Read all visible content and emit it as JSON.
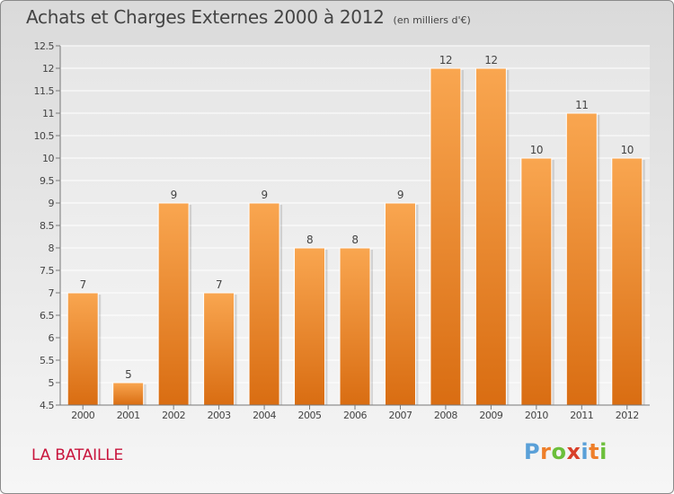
{
  "title": "Achats et Charges Externes 2000 à 2012",
  "unit": "(en milliers d'€)",
  "location": "LA BATAILLE",
  "logo": {
    "text": "Proxiti",
    "colors": [
      "#5aa0d8",
      "#ee7f2a",
      "#6cbf3b",
      "#d8402a",
      "#5aa0d8",
      "#ee7f2a",
      "#6cbf3b"
    ]
  },
  "chart_data": {
    "type": "bar",
    "categories": [
      "2000",
      "2001",
      "2002",
      "2003",
      "2004",
      "2005",
      "2006",
      "2007",
      "2008",
      "2009",
      "2010",
      "2011",
      "2012"
    ],
    "values": [
      7,
      5,
      9,
      7,
      9,
      8,
      8,
      9,
      12,
      12,
      10,
      11,
      10
    ],
    "data_labels": [
      "7",
      "5",
      "9",
      "7",
      "9",
      "8",
      "8",
      "9",
      "12",
      "12",
      "10",
      "11",
      "10"
    ],
    "ylim": [
      4.5,
      12.5
    ],
    "yticks": [
      4.5,
      5,
      5.5,
      6,
      6.5,
      7,
      7.5,
      8,
      8.5,
      9,
      9.5,
      10,
      10.5,
      11,
      11.5,
      12,
      12.5
    ],
    "ytick_labels": [
      "4.5",
      "5",
      "5.5",
      "6",
      "6.5",
      "7",
      "7.5",
      "8",
      "8.5",
      "9",
      "9.5",
      "10",
      "10.5",
      "11",
      "11.5",
      "12",
      "12.5"
    ],
    "grid": true,
    "bar_color_top": "#f9a650",
    "bar_color_bottom": "#d96d12"
  }
}
